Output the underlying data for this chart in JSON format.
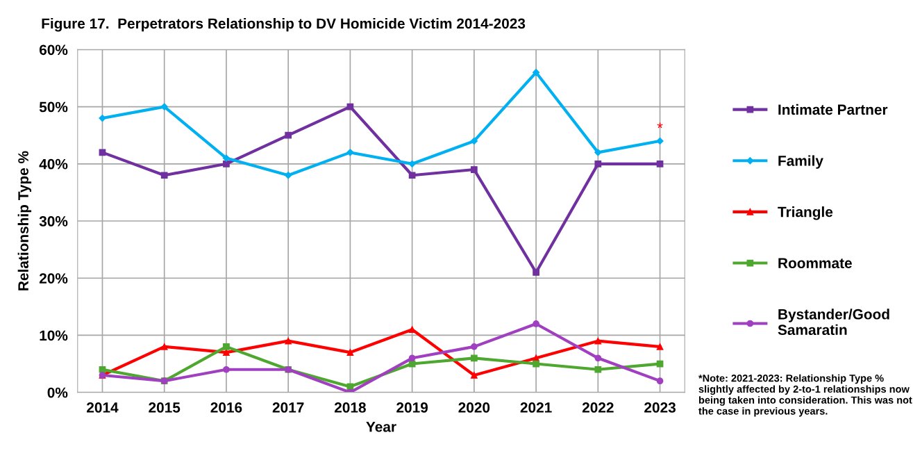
{
  "chart_data": {
    "type": "line",
    "title": "Figure 17.  Perpetrators Relationship to DV Homicide Victim 2014-2023",
    "xlabel": "Year",
    "ylabel": "Relationship Type %",
    "categories": [
      "2014",
      "2015",
      "2016",
      "2017",
      "2018",
      "2019",
      "2020",
      "2021",
      "2022",
      "2023"
    ],
    "series": [
      {
        "name": "Intimate Partner",
        "color": "#7030a0",
        "marker": "square",
        "values": [
          42,
          38,
          40,
          45,
          50,
          38,
          39,
          21,
          40,
          40
        ]
      },
      {
        "name": "Family",
        "color": "#00b0f0",
        "marker": "diamond",
        "values": [
          48,
          50,
          41,
          38,
          42,
          40,
          44,
          56,
          42,
          44
        ]
      },
      {
        "name": "Triangle",
        "color": "#ff0000",
        "marker": "triangle",
        "values": [
          3,
          8,
          7,
          9,
          7,
          11,
          3,
          6,
          9,
          8
        ]
      },
      {
        "name": "Roommate",
        "color": "#4ea72e",
        "marker": "square",
        "values": [
          4,
          2,
          8,
          4,
          1,
          5,
          6,
          5,
          4,
          5
        ]
      },
      {
        "name": "Bystander/Good Samaratin",
        "color": "#a040c0",
        "marker": "circle",
        "values": [
          3,
          2,
          4,
          4,
          0,
          6,
          8,
          12,
          6,
          2
        ]
      }
    ],
    "ylim": [
      0,
      60
    ],
    "yticks": [
      {
        "value": 0,
        "label": "0%"
      },
      {
        "value": 10,
        "label": "10%"
      },
      {
        "value": 20,
        "label": "20%"
      },
      {
        "value": 30,
        "label": "30%"
      },
      {
        "value": 40,
        "label": "40%"
      },
      {
        "value": 50,
        "label": "50%"
      },
      {
        "value": 60,
        "label": "60%"
      }
    ],
    "grid": true,
    "legend": "right",
    "line_style": "solid",
    "annotations": [
      {
        "text": "*",
        "x": "2023",
        "y": 44
      },
      "*Note: 2021-2023: Relationship Type %  slightly affected by 2-to-1 relationships now being taken into consideration. This was not the case in previous years."
    ]
  }
}
